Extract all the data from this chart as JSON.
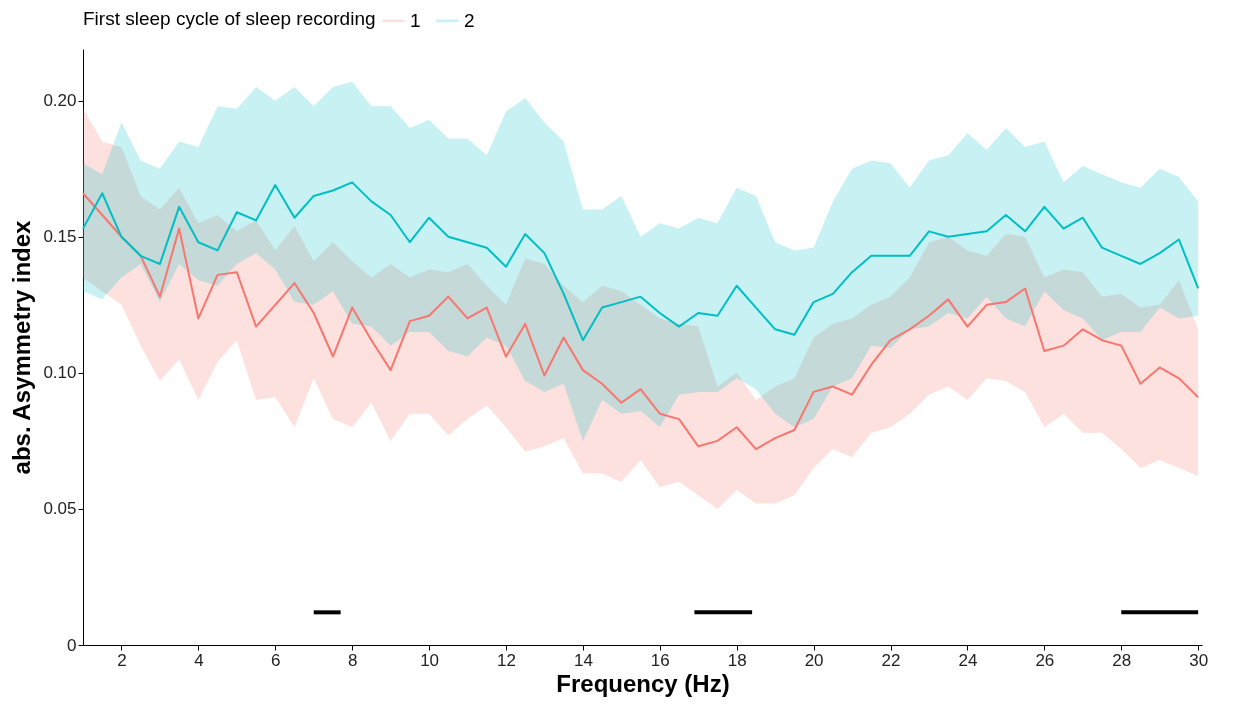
{
  "chart_data": {
    "type": "line",
    "xlabel": "Frequency (Hz)",
    "ylabel": "abs. Asymmetry index",
    "legend_title": "First sleep cycle of sleep recording",
    "legend": "top",
    "grid": false,
    "x": [
      1.0,
      1.5,
      2.0,
      2.5,
      3.0,
      3.5,
      4.0,
      4.5,
      5.0,
      5.5,
      6.0,
      6.5,
      7.0,
      7.5,
      8.0,
      8.5,
      9.0,
      9.5,
      10.0,
      10.5,
      11.0,
      11.5,
      12.0,
      12.5,
      13.0,
      13.5,
      14.0,
      14.5,
      15.0,
      15.5,
      16.0,
      16.5,
      17.0,
      17.5,
      18.0,
      18.5,
      19.0,
      19.5,
      20.0,
      20.5,
      21.0,
      21.5,
      22.0,
      22.5,
      23.0,
      23.5,
      24.0,
      24.5,
      25.0,
      25.5,
      26.0,
      26.5,
      27.0,
      27.5,
      28.0,
      28.5,
      29.0,
      29.5,
      30.0
    ],
    "xlim": [
      1,
      30.1
    ],
    "xticks": [
      2,
      4,
      6,
      8,
      10,
      12,
      14,
      16,
      18,
      20,
      22,
      24,
      26,
      28,
      30
    ],
    "ylim": [
      0,
      0.219
    ],
    "yticks": [
      0,
      0.05,
      {
        "value": 0.1,
        "label": "0.10"
      },
      0.15,
      {
        "value": 0.2,
        "label": "0.20"
      }
    ],
    "series": [
      {
        "name": "1",
        "color": "#f8766d",
        "values": [
          0.166,
          0.158,
          0.15,
          0.143,
          0.128,
          0.153,
          0.12,
          0.136,
          0.137,
          0.117,
          0.125,
          0.133,
          0.122,
          0.106,
          0.124,
          0.112,
          0.101,
          0.119,
          0.121,
          0.128,
          0.12,
          0.124,
          0.106,
          0.118,
          0.099,
          0.113,
          0.101,
          0.096,
          0.089,
          0.094,
          0.085,
          0.083,
          0.073,
          0.075,
          0.08,
          0.072,
          0.076,
          0.079,
          0.093,
          0.095,
          0.092,
          0.103,
          0.112,
          0.116,
          0.121,
          0.127,
          0.117,
          0.125,
          0.126,
          0.131,
          0.108,
          0.11,
          0.116,
          0.112,
          0.11,
          0.096,
          0.102,
          0.098,
          0.091
        ],
        "upper": [
          0.197,
          0.185,
          0.183,
          0.165,
          0.16,
          0.168,
          0.155,
          0.158,
          0.152,
          0.156,
          0.145,
          0.154,
          0.141,
          0.148,
          0.141,
          0.135,
          0.14,
          0.135,
          0.138,
          0.137,
          0.14,
          0.132,
          0.125,
          0.142,
          0.14,
          0.132,
          0.126,
          0.132,
          0.13,
          0.125,
          0.12,
          0.118,
          0.117,
          0.095,
          0.1,
          0.09,
          0.095,
          0.098,
          0.113,
          0.118,
          0.12,
          0.125,
          0.128,
          0.135,
          0.148,
          0.15,
          0.145,
          0.143,
          0.151,
          0.15,
          0.135,
          0.138,
          0.137,
          0.128,
          0.129,
          0.124,
          0.125,
          0.134,
          0.116
        ],
        "lower": [
          0.135,
          0.13,
          0.125,
          0.11,
          0.097,
          0.105,
          0.09,
          0.104,
          0.112,
          0.09,
          0.091,
          0.08,
          0.098,
          0.083,
          0.08,
          0.089,
          0.075,
          0.085,
          0.085,
          0.077,
          0.083,
          0.088,
          0.08,
          0.071,
          0.073,
          0.076,
          0.063,
          0.063,
          0.06,
          0.068,
          0.058,
          0.06,
          0.055,
          0.05,
          0.057,
          0.052,
          0.052,
          0.055,
          0.065,
          0.072,
          0.069,
          0.078,
          0.08,
          0.085,
          0.092,
          0.095,
          0.09,
          0.098,
          0.097,
          0.093,
          0.08,
          0.085,
          0.078,
          0.078,
          0.072,
          0.065,
          0.068,
          0.065,
          0.062
        ]
      },
      {
        "name": "2",
        "color": "#00bfc4",
        "values": [
          0.153,
          0.166,
          0.15,
          0.143,
          0.14,
          0.161,
          0.148,
          0.145,
          0.159,
          0.156,
          0.169,
          0.157,
          0.165,
          0.167,
          0.17,
          0.163,
          0.158,
          0.148,
          0.157,
          0.15,
          0.148,
          0.146,
          0.139,
          0.151,
          0.144,
          0.129,
          0.112,
          0.124,
          0.126,
          0.128,
          0.122,
          0.117,
          0.122,
          0.121,
          0.132,
          0.124,
          0.116,
          0.114,
          0.126,
          0.129,
          0.137,
          0.143,
          0.143,
          0.143,
          0.152,
          0.15,
          0.151,
          0.152,
          0.158,
          0.152,
          0.161,
          0.153,
          0.157,
          0.146,
          0.143,
          0.14,
          0.144,
          0.149,
          0.131
        ],
        "upper": [
          0.177,
          0.173,
          0.192,
          0.178,
          0.175,
          0.185,
          0.183,
          0.198,
          0.197,
          0.205,
          0.2,
          0.205,
          0.198,
          0.205,
          0.207,
          0.198,
          0.198,
          0.19,
          0.193,
          0.186,
          0.186,
          0.18,
          0.196,
          0.201,
          0.192,
          0.185,
          0.16,
          0.16,
          0.165,
          0.15,
          0.155,
          0.153,
          0.157,
          0.155,
          0.168,
          0.165,
          0.148,
          0.145,
          0.146,
          0.163,
          0.175,
          0.178,
          0.177,
          0.168,
          0.178,
          0.18,
          0.188,
          0.182,
          0.19,
          0.183,
          0.185,
          0.17,
          0.176,
          0.173,
          0.17,
          0.168,
          0.175,
          0.172,
          0.163
        ],
        "lower": [
          0.13,
          0.127,
          0.135,
          0.14,
          0.126,
          0.14,
          0.134,
          0.132,
          0.14,
          0.144,
          0.138,
          0.126,
          0.125,
          0.13,
          0.118,
          0.117,
          0.11,
          0.115,
          0.115,
          0.108,
          0.106,
          0.113,
          0.11,
          0.097,
          0.093,
          0.096,
          0.075,
          0.09,
          0.085,
          0.086,
          0.08,
          0.092,
          0.093,
          0.093,
          0.098,
          0.094,
          0.085,
          0.08,
          0.083,
          0.095,
          0.098,
          0.11,
          0.109,
          0.116,
          0.117,
          0.122,
          0.12,
          0.128,
          0.12,
          0.117,
          0.13,
          0.123,
          0.12,
          0.112,
          0.115,
          0.115,
          0.124,
          0.12,
          0.121
        ]
      },
      {
        "type": "line",
        "color": "#000000",
        "x": [
          7.0,
          7.7
        ],
        "values": [
          0.012,
          0.012
        ]
      },
      {
        "type": "line",
        "color": "#000000",
        "x": [
          16.9,
          18.4
        ],
        "values": [
          0.012,
          0.012
        ]
      },
      {
        "type": "line",
        "color": "#000000",
        "x": [
          28.0,
          30.0
        ],
        "values": [
          0.012,
          0.012
        ]
      }
    ]
  }
}
